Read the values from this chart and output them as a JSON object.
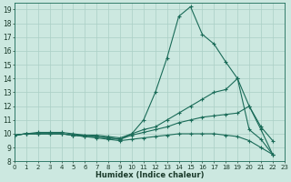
{
  "xlabel": "Humidex (Indice chaleur)",
  "bg_color": "#cce8e0",
  "grid_color": "#aacfc5",
  "line_color": "#1a6b58",
  "xlim": [
    0,
    23
  ],
  "ylim": [
    8,
    19.5
  ],
  "xticks": [
    0,
    1,
    2,
    3,
    4,
    5,
    6,
    7,
    8,
    9,
    10,
    11,
    12,
    13,
    14,
    15,
    16,
    17,
    18,
    19,
    20,
    21,
    22,
    23
  ],
  "yticks": [
    8,
    9,
    10,
    11,
    12,
    13,
    14,
    15,
    16,
    17,
    18,
    19
  ],
  "series": [
    {
      "x": [
        0,
        1,
        2,
        3,
        4,
        5,
        6,
        7,
        8,
        9,
        10,
        11,
        12,
        13,
        14,
        15,
        16,
        17,
        18,
        19,
        20,
        21,
        22
      ],
      "y": [
        9.9,
        10.0,
        10.1,
        10.1,
        10.1,
        10.0,
        9.9,
        9.8,
        9.7,
        9.6,
        10.0,
        11.0,
        13.0,
        15.5,
        18.5,
        19.2,
        17.2,
        16.5,
        15.2,
        14.0,
        10.3,
        9.6,
        8.5
      ]
    },
    {
      "x": [
        0,
        1,
        2,
        3,
        4,
        5,
        6,
        7,
        8,
        9,
        10,
        11,
        12,
        13,
        14,
        15,
        16,
        17,
        18,
        19,
        20,
        21,
        22
      ],
      "y": [
        9.9,
        10.0,
        10.0,
        10.0,
        10.0,
        9.9,
        9.9,
        9.9,
        9.8,
        9.7,
        10.0,
        10.3,
        10.5,
        11.0,
        11.5,
        12.0,
        12.5,
        13.0,
        13.2,
        14.0,
        12.0,
        10.5,
        9.5
      ]
    },
    {
      "x": [
        0,
        1,
        2,
        3,
        4,
        5,
        6,
        7,
        8,
        9,
        10,
        11,
        12,
        13,
        14,
        15,
        16,
        17,
        18,
        19,
        20,
        21,
        22
      ],
      "y": [
        9.9,
        10.0,
        10.0,
        10.0,
        10.0,
        9.9,
        9.8,
        9.8,
        9.7,
        9.6,
        9.9,
        10.1,
        10.3,
        10.5,
        10.8,
        11.0,
        11.2,
        11.3,
        11.4,
        11.5,
        12.0,
        10.3,
        8.5
      ]
    },
    {
      "x": [
        0,
        1,
        2,
        3,
        4,
        5,
        6,
        7,
        8,
        9,
        10,
        11,
        12,
        13,
        14,
        15,
        16,
        17,
        18,
        19,
        20,
        21,
        22
      ],
      "y": [
        9.9,
        10.0,
        10.0,
        10.0,
        10.0,
        9.9,
        9.8,
        9.7,
        9.6,
        9.5,
        9.6,
        9.7,
        9.8,
        9.9,
        10.0,
        10.0,
        10.0,
        10.0,
        9.9,
        9.8,
        9.5,
        9.0,
        8.5
      ]
    }
  ]
}
